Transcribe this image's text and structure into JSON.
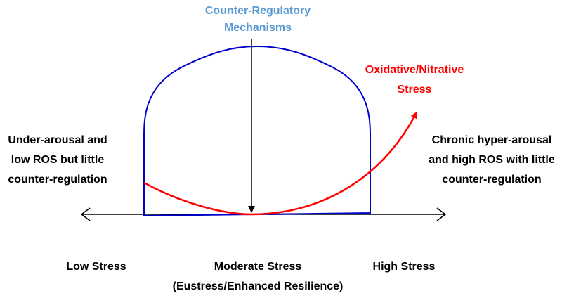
{
  "top_label": {
    "lines": [
      "Counter-Regulatory",
      "Mechanisms"
    ]
  },
  "curve_label": {
    "lines": [
      "Oxidative/Nitrative",
      "Stress"
    ]
  },
  "left_label": {
    "lines": [
      "Under-arousal and",
      "low ROS but little",
      "counter-regulation"
    ]
  },
  "right_label": {
    "lines": [
      "Chronic hyper-arousal",
      "and high ROS with little",
      "counter-regulation"
    ]
  },
  "axis_labels": {
    "low": "Low Stress",
    "moderate": "Moderate Stress",
    "moderate_note": "(Eustress/Enhanced Resilience)",
    "high": "High Stress"
  }
}
